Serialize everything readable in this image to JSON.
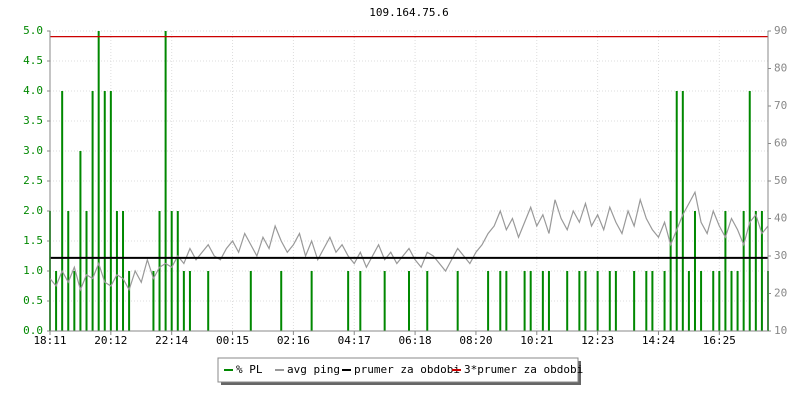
{
  "chart_data": {
    "type": "line",
    "title": "109.164.75.6",
    "categories": [
      "18:11",
      null,
      null,
      null,
      null,
      null,
      null,
      null,
      null,
      null,
      "20:12",
      null,
      null,
      null,
      null,
      null,
      null,
      null,
      null,
      null,
      "22:14",
      null,
      null,
      null,
      null,
      null,
      null,
      null,
      null,
      null,
      "00:15",
      null,
      null,
      null,
      null,
      null,
      null,
      null,
      null,
      null,
      "02:16",
      null,
      null,
      null,
      null,
      null,
      null,
      null,
      null,
      null,
      "04:17",
      null,
      null,
      null,
      null,
      null,
      null,
      null,
      null,
      null,
      "06:18",
      null,
      null,
      null,
      null,
      null,
      null,
      null,
      null,
      null,
      "08:20",
      null,
      null,
      null,
      null,
      null,
      null,
      null,
      null,
      null,
      "10:21",
      null,
      null,
      null,
      null,
      null,
      null,
      null,
      null,
      null,
      "12:23",
      null,
      null,
      null,
      null,
      null,
      null,
      null,
      null,
      null,
      "14:24",
      null,
      null,
      null,
      null,
      null,
      null,
      null,
      null,
      null,
      "16:25",
      null,
      null,
      null,
      null,
      null,
      null,
      null,
      null
    ],
    "series": [
      {
        "name": "% PL",
        "color": "#008800",
        "style": "impulse",
        "values": [
          2,
          1,
          4,
          2,
          1,
          3,
          2,
          4,
          5,
          4,
          4,
          2,
          2,
          1,
          0,
          0,
          0,
          1,
          2,
          5,
          2,
          2,
          1,
          1,
          0,
          0,
          1,
          0,
          0,
          0,
          0,
          0,
          0,
          1,
          0,
          0,
          0,
          0,
          1,
          0,
          0,
          0,
          0,
          1,
          0,
          0,
          0,
          0,
          0,
          1,
          0,
          1,
          0,
          0,
          0,
          1,
          0,
          0,
          0,
          1,
          0,
          0,
          1,
          0,
          0,
          0,
          0,
          1,
          0,
          0,
          0,
          0,
          1,
          0,
          1,
          1,
          0,
          0,
          1,
          1,
          0,
          1,
          1,
          0,
          0,
          1,
          0,
          1,
          1,
          0,
          1,
          0,
          1,
          1,
          0,
          0,
          1,
          0,
          1,
          1,
          0,
          1,
          2,
          4,
          4,
          1,
          2,
          1,
          0,
          1,
          1,
          2,
          1,
          1,
          2,
          4,
          2,
          2,
          1
        ]
      },
      {
        "name": "avg ping",
        "color": "#999999",
        "axis": "y2",
        "style": "line",
        "values": [
          24,
          22,
          26,
          23,
          27,
          21,
          25,
          24,
          28,
          23,
          22,
          25,
          24,
          21,
          26,
          23,
          29,
          24,
          27,
          28,
          27,
          30,
          28,
          32,
          29,
          31,
          33,
          30,
          29,
          32,
          34,
          31,
          36,
          33,
          30,
          35,
          32,
          38,
          34,
          31,
          33,
          36,
          30,
          34,
          29,
          32,
          35,
          31,
          33,
          30,
          28,
          31,
          27,
          30,
          33,
          29,
          31,
          28,
          30,
          32,
          29,
          27,
          31,
          30,
          28,
          26,
          29,
          32,
          30,
          28,
          31,
          33,
          36,
          38,
          42,
          37,
          40,
          35,
          39,
          43,
          38,
          41,
          36,
          45,
          40,
          37,
          42,
          39,
          44,
          38,
          41,
          37,
          43,
          39,
          36,
          42,
          38,
          45,
          40,
          37,
          35,
          39,
          33,
          37,
          41,
          44,
          47,
          39,
          36,
          42,
          38,
          35,
          40,
          37,
          33,
          39,
          41,
          36,
          38
        ]
      },
      {
        "name": "prumer za obdobi",
        "color": "#000000",
        "axis": "y2",
        "style": "hline",
        "value": 29.5
      },
      {
        "name": "3*prumer za obdobi",
        "color": "#cc0000",
        "axis": "y2",
        "style": "hline",
        "value": 88.5
      }
    ],
    "ylim": [
      0,
      5
    ],
    "yticks": [
      {
        "value": 0,
        "label": "0.0"
      },
      {
        "value": 0.5,
        "label": "0.5"
      },
      {
        "value": 1,
        "label": "1.0"
      },
      {
        "value": 1.5,
        "label": "1.5"
      },
      {
        "value": 2,
        "label": "2.0"
      },
      {
        "value": 2.5,
        "label": "2.5"
      },
      {
        "value": 3,
        "label": "3.0"
      },
      {
        "value": 3.5,
        "label": "3.5"
      },
      {
        "value": 4,
        "label": "4.0"
      },
      {
        "value": 4.5,
        "label": "4.5"
      },
      {
        "value": 5,
        "label": "5.0"
      }
    ],
    "y2lim": [
      10,
      90
    ],
    "y2ticks": [
      10,
      20,
      30,
      40,
      50,
      60,
      70,
      80,
      90
    ],
    "grid": true
  }
}
